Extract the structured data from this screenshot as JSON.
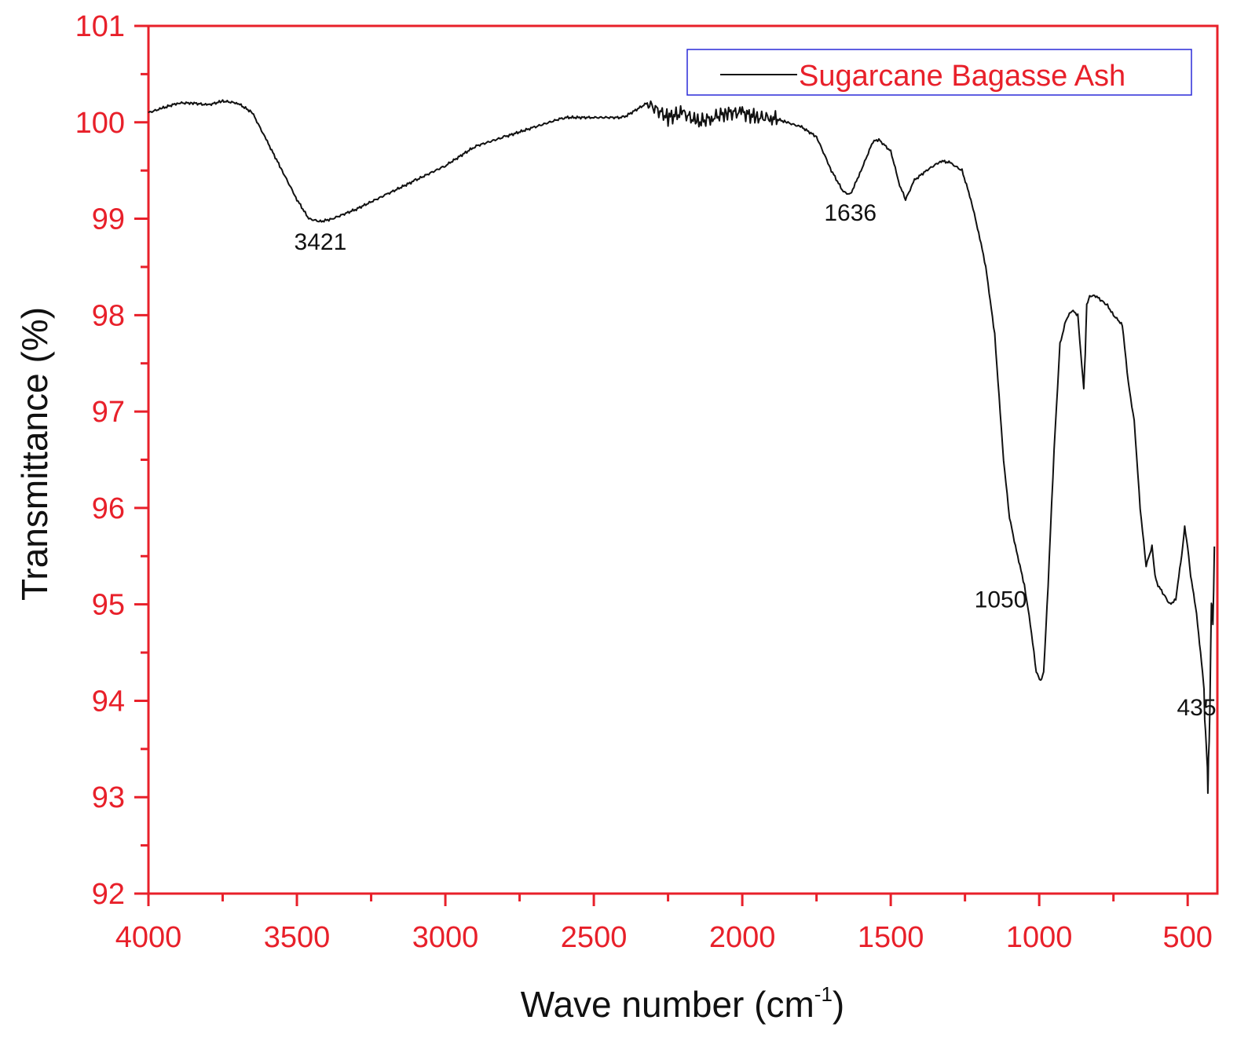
{
  "chart_data": {
    "type": "line",
    "xlabel": "Wave number (cm",
    "xlabel_sup": "-1",
    "xlabel_close": ")",
    "ylabel": "Transmittance (%)",
    "xlim": [
      4000,
      400
    ],
    "ylim": [
      92,
      101
    ],
    "x_ticks": [
      "4000",
      "3500",
      "3000",
      "2500",
      "2000",
      "1500",
      "1000",
      "500"
    ],
    "y_ticks": [
      "101",
      "100",
      "99",
      "98",
      "97",
      "96",
      "95",
      "94",
      "93",
      "92"
    ],
    "legend": {
      "label": "Sugarcane Bagasse Ash",
      "position": "top-right"
    },
    "annotations": [
      "3421",
      "1636",
      "1050",
      "435"
    ],
    "series": [
      {
        "name": "Sugarcane Bagasse Ash",
        "x": [
          4000,
          3950,
          3900,
          3850,
          3800,
          3750,
          3700,
          3650,
          3600,
          3550,
          3500,
          3460,
          3421,
          3380,
          3300,
          3200,
          3100,
          3000,
          2900,
          2800,
          2700,
          2600,
          2500,
          2400,
          2320,
          2250,
          2200,
          2150,
          2100,
          2050,
          2000,
          1950,
          1900,
          1850,
          1800,
          1750,
          1700,
          1660,
          1636,
          1600,
          1560,
          1540,
          1500,
          1470,
          1450,
          1420,
          1380,
          1330,
          1300,
          1260,
          1230,
          1200,
          1180,
          1150,
          1120,
          1100,
          1080,
          1050,
          1030,
          1010,
          995,
          985,
          970,
          950,
          930,
          910,
          890,
          870,
          860,
          850,
          845,
          840,
          830,
          810,
          790,
          770,
          750,
          720,
          700,
          680,
          660,
          640,
          620,
          610,
          600,
          580,
          560,
          540,
          530,
          520,
          510,
          500,
          490,
          480,
          470,
          460,
          450,
          445,
          440,
          435,
          432,
          430,
          425,
          420,
          415,
          410
        ],
        "y": [
          100.1,
          100.15,
          100.2,
          100.2,
          100.18,
          100.22,
          100.2,
          100.1,
          99.8,
          99.5,
          99.2,
          99.0,
          98.97,
          99.0,
          99.1,
          99.25,
          99.4,
          99.55,
          99.75,
          99.85,
          99.95,
          100.05,
          100.05,
          100.05,
          100.2,
          100.05,
          100.1,
          100.0,
          100.05,
          100.1,
          100.1,
          100.05,
          100.05,
          100.0,
          99.95,
          99.85,
          99.5,
          99.28,
          99.25,
          99.5,
          99.8,
          99.82,
          99.7,
          99.35,
          99.2,
          99.4,
          99.5,
          99.6,
          99.58,
          99.5,
          99.2,
          98.8,
          98.5,
          97.8,
          96.5,
          95.9,
          95.6,
          95.2,
          94.8,
          94.3,
          94.2,
          94.3,
          95.2,
          96.6,
          97.7,
          97.95,
          98.05,
          98.0,
          97.6,
          97.25,
          97.6,
          98.1,
          98.2,
          98.2,
          98.15,
          98.1,
          98.0,
          97.9,
          97.3,
          96.9,
          96.0,
          95.4,
          95.6,
          95.3,
          95.2,
          95.1,
          95.0,
          95.05,
          95.3,
          95.5,
          95.8,
          95.6,
          95.3,
          95.1,
          94.9,
          94.6,
          94.3,
          94.0,
          93.7,
          93.5,
          93.0,
          93.3,
          94.0,
          95.1,
          94.7,
          95.6
        ]
      }
    ]
  }
}
